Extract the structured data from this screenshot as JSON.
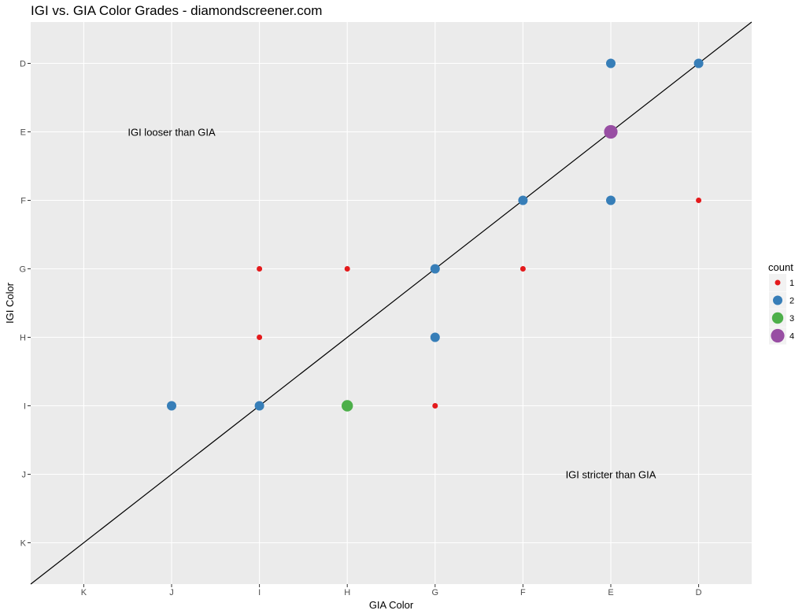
{
  "chart_data": {
    "type": "scatter",
    "title": "IGI vs. GIA Color Grades - diamondscreener.com",
    "xlabel": "GIA Color",
    "ylabel": "IGI Color",
    "x_categories": [
      "K",
      "J",
      "I",
      "H",
      "G",
      "F",
      "E",
      "D"
    ],
    "y_categories": [
      "K",
      "J",
      "I",
      "H",
      "G",
      "F",
      "E",
      "D"
    ],
    "grid": true,
    "legend": {
      "title": "count",
      "position": "right",
      "items": [
        {
          "label": "1",
          "color": "#e41a1c"
        },
        {
          "label": "2",
          "color": "#377eb8"
        },
        {
          "label": "3",
          "color": "#4daf4a"
        },
        {
          "label": "4",
          "color": "#984ea3"
        }
      ]
    },
    "points": [
      {
        "x": "E",
        "y": "D",
        "count": 2
      },
      {
        "x": "D",
        "y": "D",
        "count": 2
      },
      {
        "x": "E",
        "y": "E",
        "count": 4
      },
      {
        "x": "F",
        "y": "F",
        "count": 2
      },
      {
        "x": "E",
        "y": "F",
        "count": 2
      },
      {
        "x": "D",
        "y": "F",
        "count": 1
      },
      {
        "x": "I",
        "y": "G",
        "count": 1
      },
      {
        "x": "H",
        "y": "G",
        "count": 1
      },
      {
        "x": "G",
        "y": "G",
        "count": 2
      },
      {
        "x": "F",
        "y": "G",
        "count": 1
      },
      {
        "x": "I",
        "y": "H",
        "count": 1
      },
      {
        "x": "G",
        "y": "H",
        "count": 2
      },
      {
        "x": "J",
        "y": "I",
        "count": 2
      },
      {
        "x": "I",
        "y": "I",
        "count": 2
      },
      {
        "x": "H",
        "y": "I",
        "count": 3
      },
      {
        "x": "G",
        "y": "I",
        "count": 1
      }
    ],
    "reference_line": "y = x",
    "annotations": [
      {
        "text": "IGI looser than GIA",
        "x": "J",
        "y": "E"
      },
      {
        "text": "IGI stricter than GIA",
        "x": "E",
        "y": "J"
      }
    ]
  }
}
